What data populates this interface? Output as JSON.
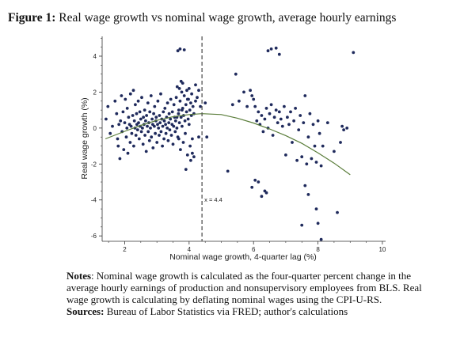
{
  "figure": {
    "label": "Figure 1:",
    "title": "Real wage growth vs nominal wage growth, average hourly earnings"
  },
  "notes": {
    "notes_label": "Notes",
    "notes_text": ": Nominal wage growth is calculated as the four-quarter percent change in the average hourly earnings of production and nonsupervisory employees from BLS. Real wage growth is calculating by deflating nominal wages using the CPI-U-RS.",
    "sources_label": "Sources:",
    "sources_text": " Bureau of Labor Statistics via FRED; author's calculations"
  },
  "chart_data": {
    "type": "scatter",
    "xlabel": "Nominal wage growth, 4-quarter lag (%)",
    "ylabel": "Real wage growth (%)",
    "xlim": [
      1.3,
      10.1
    ],
    "ylim": [
      -6.3,
      5.1
    ],
    "xticks": [
      2,
      4,
      6,
      8,
      10
    ],
    "yticks": [
      -6,
      -4,
      -2,
      0,
      2,
      4
    ],
    "grid": false,
    "legend": "none",
    "colors": {
      "points": "#1f2a5c",
      "fit": "#5a7d3a",
      "vline": "#555555"
    },
    "vline": {
      "x": 4.4,
      "label": "x = 4.4"
    },
    "fit_curve": {
      "x": [
        1.4,
        2.0,
        2.5,
        3.0,
        3.5,
        4.0,
        4.4,
        5.0,
        5.5,
        6.0,
        6.5,
        7.0,
        7.5,
        8.0,
        8.5,
        9.0
      ],
      "y": [
        -0.6,
        -0.18,
        0.15,
        0.43,
        0.63,
        0.75,
        0.8,
        0.75,
        0.55,
        0.28,
        -0.05,
        -0.42,
        -0.85,
        -1.38,
        -1.95,
        -2.6
      ]
    },
    "points": {
      "x": [
        1.42,
        1.48,
        1.55,
        1.62,
        1.7,
        1.75,
        1.78,
        1.8,
        1.82,
        1.85,
        1.87,
        1.9,
        1.92,
        1.95,
        1.97,
        2.0,
        2.02,
        2.05,
        2.07,
        2.08,
        2.1,
        2.12,
        2.15,
        2.17,
        2.18,
        2.2,
        2.22,
        2.25,
        2.27,
        2.28,
        2.3,
        2.32,
        2.33,
        2.35,
        2.37,
        2.38,
        2.4,
        2.42,
        2.43,
        2.45,
        2.47,
        2.48,
        2.5,
        2.52,
        2.53,
        2.55,
        2.57,
        2.58,
        2.6,
        2.62,
        2.63,
        2.65,
        2.67,
        2.68,
        2.7,
        2.72,
        2.73,
        2.75,
        2.77,
        2.78,
        2.8,
        2.82,
        2.83,
        2.85,
        2.87,
        2.88,
        2.9,
        2.92,
        2.93,
        2.95,
        2.97,
        2.98,
        3.0,
        3.02,
        3.03,
        3.05,
        3.07,
        3.08,
        3.1,
        3.12,
        3.13,
        3.15,
        3.17,
        3.18,
        3.2,
        3.22,
        3.23,
        3.25,
        3.27,
        3.28,
        3.3,
        3.32,
        3.33,
        3.35,
        3.37,
        3.38,
        3.4,
        3.42,
        3.43,
        3.45,
        3.47,
        3.48,
        3.5,
        3.52,
        3.53,
        3.55,
        3.57,
        3.58,
        3.6,
        3.62,
        3.63,
        3.65,
        3.67,
        3.68,
        3.7,
        3.72,
        3.73,
        3.75,
        3.77,
        3.78,
        3.8,
        3.82,
        3.83,
        3.85,
        3.87,
        3.88,
        3.9,
        3.92,
        3.93,
        3.95,
        3.97,
        3.98,
        4.0,
        4.02,
        4.03,
        4.05,
        4.07,
        4.08,
        4.1,
        4.12,
        4.15,
        4.2,
        4.25,
        4.3,
        4.35,
        4.5,
        4.55,
        3.68,
        3.72,
        3.85,
        3.65,
        3.75,
        3.8,
        3.7,
        3.9,
        4.05,
        3.95,
        4.15,
        4.3,
        4.0,
        4.1,
        4.2,
        3.78,
        3.62,
        5.2,
        5.35,
        5.45,
        5.55,
        5.7,
        5.8,
        5.9,
        5.95,
        6.0,
        6.05,
        6.1,
        6.15,
        6.2,
        6.25,
        6.3,
        6.35,
        6.4,
        6.45,
        6.5,
        6.55,
        6.6,
        6.65,
        6.7,
        6.75,
        6.8,
        6.85,
        6.9,
        6.95,
        7.0,
        7.05,
        7.1,
        7.15,
        7.2,
        7.25,
        7.3,
        7.35,
        7.4,
        7.45,
        7.5,
        7.55,
        7.6,
        7.65,
        7.7,
        7.75,
        7.8,
        7.85,
        7.9,
        7.95,
        8.0,
        8.05,
        8.1,
        8.15,
        8.3,
        8.5,
        8.7,
        8.75,
        8.8,
        8.9,
        9.1,
        6.45,
        6.55,
        6.7,
        6.8,
        6.4,
        5.95,
        6.05,
        6.15,
        6.25,
        6.35,
        7.5,
        7.6,
        7.7,
        7.95,
        8.0,
        8.1,
        8.6
      ],
      "y": [
        0.5,
        1.2,
        -0.3,
        0.1,
        1.5,
        0.8,
        -0.6,
        -1.0,
        0.2,
        -1.7,
        0.4,
        1.8,
        -0.2,
        0.9,
        -1.2,
        0.3,
        1.6,
        -0.5,
        0.0,
        1.1,
        -1.4,
        0.6,
        0.2,
        -0.8,
        1.9,
        0.1,
        -0.3,
        0.7,
        2.1,
        -1.0,
        0.4,
        0.0,
        1.3,
        -0.4,
        0.8,
        0.2,
        -0.1,
        1.5,
        0.3,
        -0.6,
        0.9,
        0.1,
        0.5,
        -0.2,
        1.7,
        0.0,
        -0.9,
        0.6,
        0.2,
        1.0,
        -0.4,
        0.4,
        -1.3,
        0.7,
        0.1,
        1.4,
        -0.2,
        0.3,
        -0.7,
        0.9,
        0.0,
        1.8,
        -0.5,
        0.5,
        0.2,
        -1.1,
        0.8,
        0.1,
        1.2,
        -0.3,
        0.4,
        0.6,
        -0.8,
        0.2,
        1.5,
        0.0,
        -0.4,
        0.7,
        0.3,
        1.9,
        -0.2,
        0.5,
        -1.0,
        0.1,
        0.9,
        -0.6,
        0.4,
        1.1,
        0.2,
        -0.3,
        0.6,
        0.0,
        1.4,
        -0.7,
        0.3,
        0.8,
        -0.1,
        0.5,
        1.6,
        -0.4,
        0.2,
        0.9,
        -0.9,
        0.1,
        1.3,
        0.6,
        -0.2,
        0.4,
        1.7,
        0.0,
        2.3,
        -0.5,
        0.8,
        1.0,
        0.3,
        1.5,
        -1.2,
        0.6,
        2.0,
        0.1,
        1.1,
        -0.8,
        0.7,
        1.8,
        0.4,
        -0.3,
        1.3,
        0.9,
        2.1,
        -1.5,
        0.5,
        1.6,
        0.2,
        1.0,
        -1.0,
        1.4,
        0.7,
        1.9,
        -0.6,
        1.2,
        0.8,
        1.5,
        1.7,
        -0.5,
        1.2,
        1.4,
        -0.5,
        -0.6,
        4.4,
        4.35,
        4.3,
        2.6,
        2.5,
        2.2,
        -2.3,
        -1.8,
        1.6,
        -1.6,
        2.1,
        2.2,
        -1.4,
        2.4,
        1.0,
        0.6,
        -2.4,
        1.3,
        3.0,
        1.5,
        2.0,
        1.2,
        2.1,
        1.8,
        1.6,
        1.2,
        0.4,
        0.9,
        0.2,
        0.7,
        -0.2,
        0.5,
        1.1,
        0.0,
        0.8,
        1.3,
        -0.4,
        0.6,
        1.0,
        0.3,
        0.9,
        0.5,
        0.1,
        1.2,
        -1.5,
        0.6,
        0.2,
        0.9,
        -0.8,
        0.4,
        1.1,
        -1.8,
        -0.1,
        0.7,
        -1.6,
        0.3,
        1.8,
        -2.0,
        -0.5,
        0.8,
        -1.7,
        0.2,
        -1.0,
        -1.9,
        0.4,
        -0.3,
        -2.1,
        -1.0,
        0.3,
        -1.3,
        -0.8,
        0.1,
        -0.1,
        0.0,
        4.2,
        4.3,
        4.4,
        4.45,
        4.1,
        -3.6,
        -3.3,
        -2.9,
        -3.0,
        -3.8,
        -3.5,
        -5.4,
        -3.2,
        -3.7,
        -4.5,
        -5.3,
        -6.2,
        -4.7
      ]
    }
  }
}
